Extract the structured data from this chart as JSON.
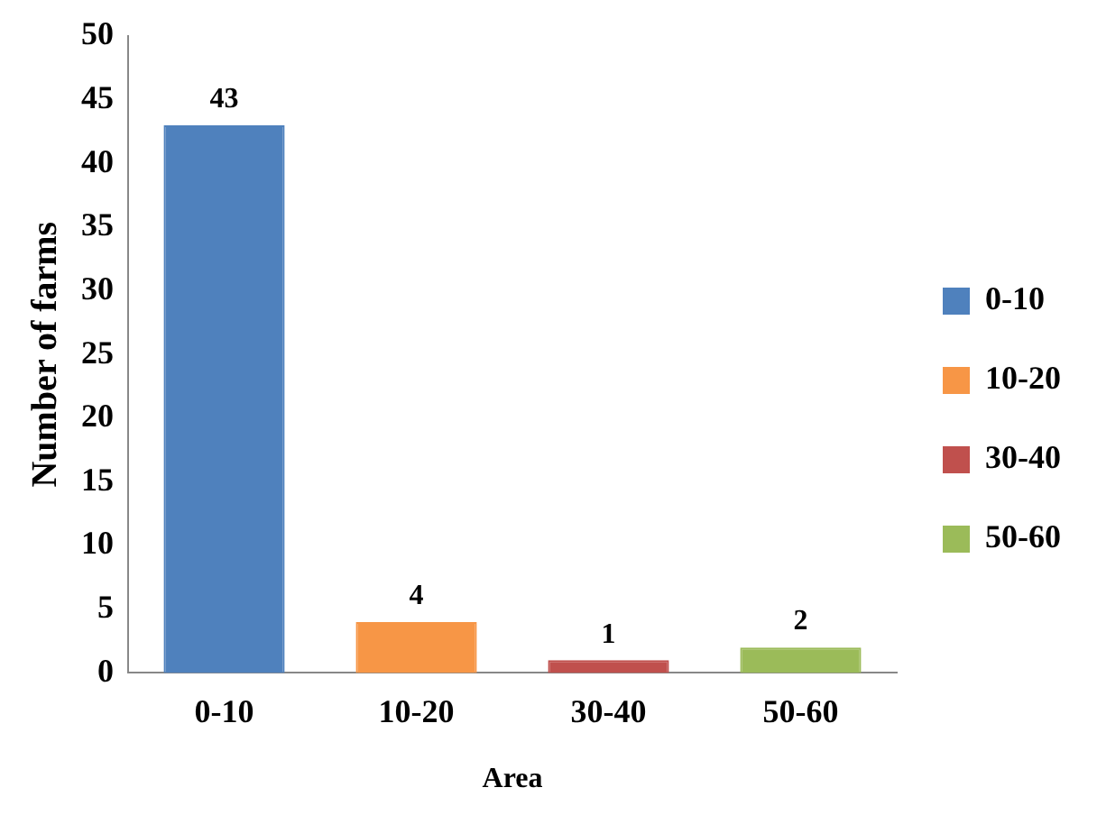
{
  "chart_data": {
    "type": "bar",
    "xlabel": "Area",
    "ylabel": "Number of farms",
    "categories": [
      "0-10",
      "10-20",
      "30-40",
      "50-60"
    ],
    "series": [
      {
        "name": "0-10",
        "color": "#4f81bd",
        "values": [
          43,
          null,
          null,
          null
        ]
      },
      {
        "name": "10-20",
        "color": "#f79646",
        "values": [
          null,
          4,
          null,
          null
        ]
      },
      {
        "name": "30-40",
        "color": "#c0504d",
        "values": [
          null,
          null,
          1,
          null
        ]
      },
      {
        "name": "50-60",
        "color": "#9bbb59",
        "values": [
          null,
          null,
          null,
          2
        ]
      }
    ],
    "ylim": [
      0,
      50
    ],
    "yticks": [
      0,
      5,
      10,
      15,
      20,
      25,
      30,
      35,
      40,
      45,
      50
    ],
    "grid": false,
    "legend": "right",
    "data_labels": true
  }
}
